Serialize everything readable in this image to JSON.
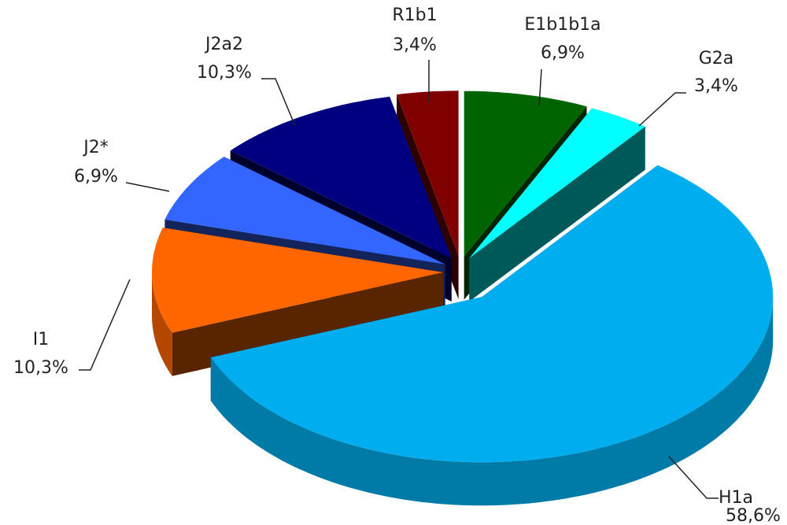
{
  "chart_data": {
    "type": "pie3d",
    "categories": [
      "E1b1b1a",
      "G2a",
      "H1a",
      "I1",
      "J2*",
      "J2a2",
      "R1b1"
    ],
    "values": [
      6.9,
      3.4,
      58.6,
      10.3,
      6.9,
      10.3,
      3.4
    ],
    "value_labels": [
      "6,9%",
      "3,4%",
      "58,6%",
      "10,3%",
      "6,9%",
      "10,3%",
      "3,4%"
    ],
    "colors": [
      "#006400",
      "#00ffff",
      "#00aeef",
      "#ff6600",
      "#3366ff",
      "#000080",
      "#800000"
    ]
  }
}
